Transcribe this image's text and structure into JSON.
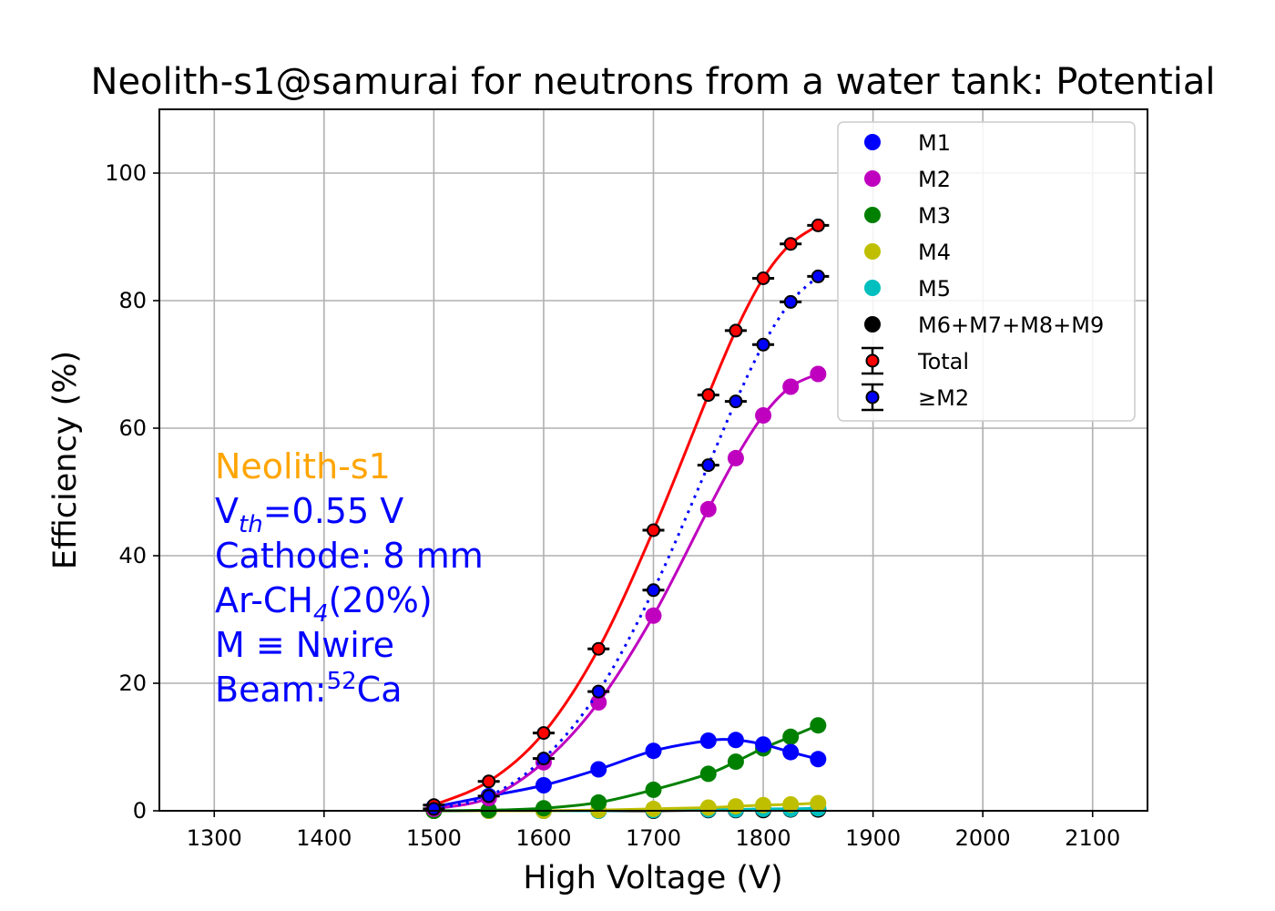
{
  "chart_data": {
    "type": "line",
    "title": "Neolith-s1@samurai for neutrons from a water tank: Potential",
    "xlabel": "High Voltage (V)",
    "ylabel": "Efficiency (%)",
    "xlim": [
      1250,
      2150
    ],
    "ylim": [
      0,
      110
    ],
    "xticks": [
      1300,
      1400,
      1500,
      1600,
      1700,
      1800,
      1900,
      2000,
      2100
    ],
    "yticks": [
      0,
      20,
      40,
      60,
      80,
      100
    ],
    "grid": true,
    "legend_position": "top-right",
    "x": [
      1500,
      1550,
      1600,
      1650,
      1700,
      1750,
      1775,
      1800,
      1825,
      1850
    ],
    "series": [
      {
        "name": "M1",
        "color": "#0000ff",
        "marker": "circle",
        "line": "solid",
        "values": [
          0.6,
          2.3,
          4.0,
          6.5,
          9.4,
          11.0,
          11.1,
          10.4,
          9.2,
          8.1
        ]
      },
      {
        "name": "M2",
        "color": "#bf00bf",
        "marker": "circle",
        "line": "solid",
        "values": [
          0.3,
          2.0,
          7.6,
          17.0,
          30.6,
          47.3,
          55.3,
          62.0,
          66.5,
          68.5
        ]
      },
      {
        "name": "M3",
        "color": "#008000",
        "marker": "circle",
        "line": "solid",
        "values": [
          0.0,
          0.1,
          0.4,
          1.3,
          3.3,
          5.8,
          7.7,
          9.8,
          11.6,
          13.4
        ]
      },
      {
        "name": "M4",
        "color": "#bfbf00",
        "marker": "circle",
        "line": "solid",
        "values": [
          0.0,
          0.0,
          0.0,
          0.1,
          0.3,
          0.5,
          0.7,
          0.9,
          1.0,
          1.2
        ]
      },
      {
        "name": "M5",
        "color": "#00bfbf",
        "marker": "circle",
        "line": "solid",
        "values": [
          0.0,
          0.0,
          0.0,
          0.0,
          0.1,
          0.2,
          0.2,
          0.3,
          0.3,
          0.4
        ]
      },
      {
        "name": "M6+M7+M8+M9",
        "color": "#000000",
        "marker": "circle",
        "line": "solid",
        "values": [
          0.0,
          0.0,
          0.0,
          0.0,
          0.0,
          0.1,
          0.1,
          0.1,
          0.2,
          0.2
        ]
      },
      {
        "name": "Total",
        "color": "#ff0000",
        "marker": "errorbar",
        "line": "solid",
        "values": [
          0.9,
          4.6,
          12.2,
          25.4,
          44.0,
          65.2,
          75.3,
          83.5,
          88.9,
          91.8
        ]
      },
      {
        "name": " ≥M2",
        "color": "#0000ff",
        "marker": "errorbar",
        "line": "dotted",
        "values": [
          0.3,
          2.3,
          8.2,
          18.7,
          34.6,
          54.2,
          64.2,
          73.1,
          79.8,
          83.8
        ]
      }
    ],
    "annotations": [
      {
        "text": "Neolith-s1",
        "color": "#ffa500"
      },
      {
        "text": "V",
        "sub": "th",
        "text_after": "=0.55 V",
        "color": "#0000ff"
      },
      {
        "text": "Cathode: 8 mm",
        "color": "#0000ff"
      },
      {
        "text": "Ar-CH",
        "sub": "4",
        "text_after": "(20%)",
        "color": "#0000ff"
      },
      {
        "text": "M ≡ Nwire",
        "color": "#0000ff"
      },
      {
        "text": "Beam:",
        "sup": "52",
        "text_after": "Ca",
        "color": "#0000ff"
      }
    ]
  }
}
